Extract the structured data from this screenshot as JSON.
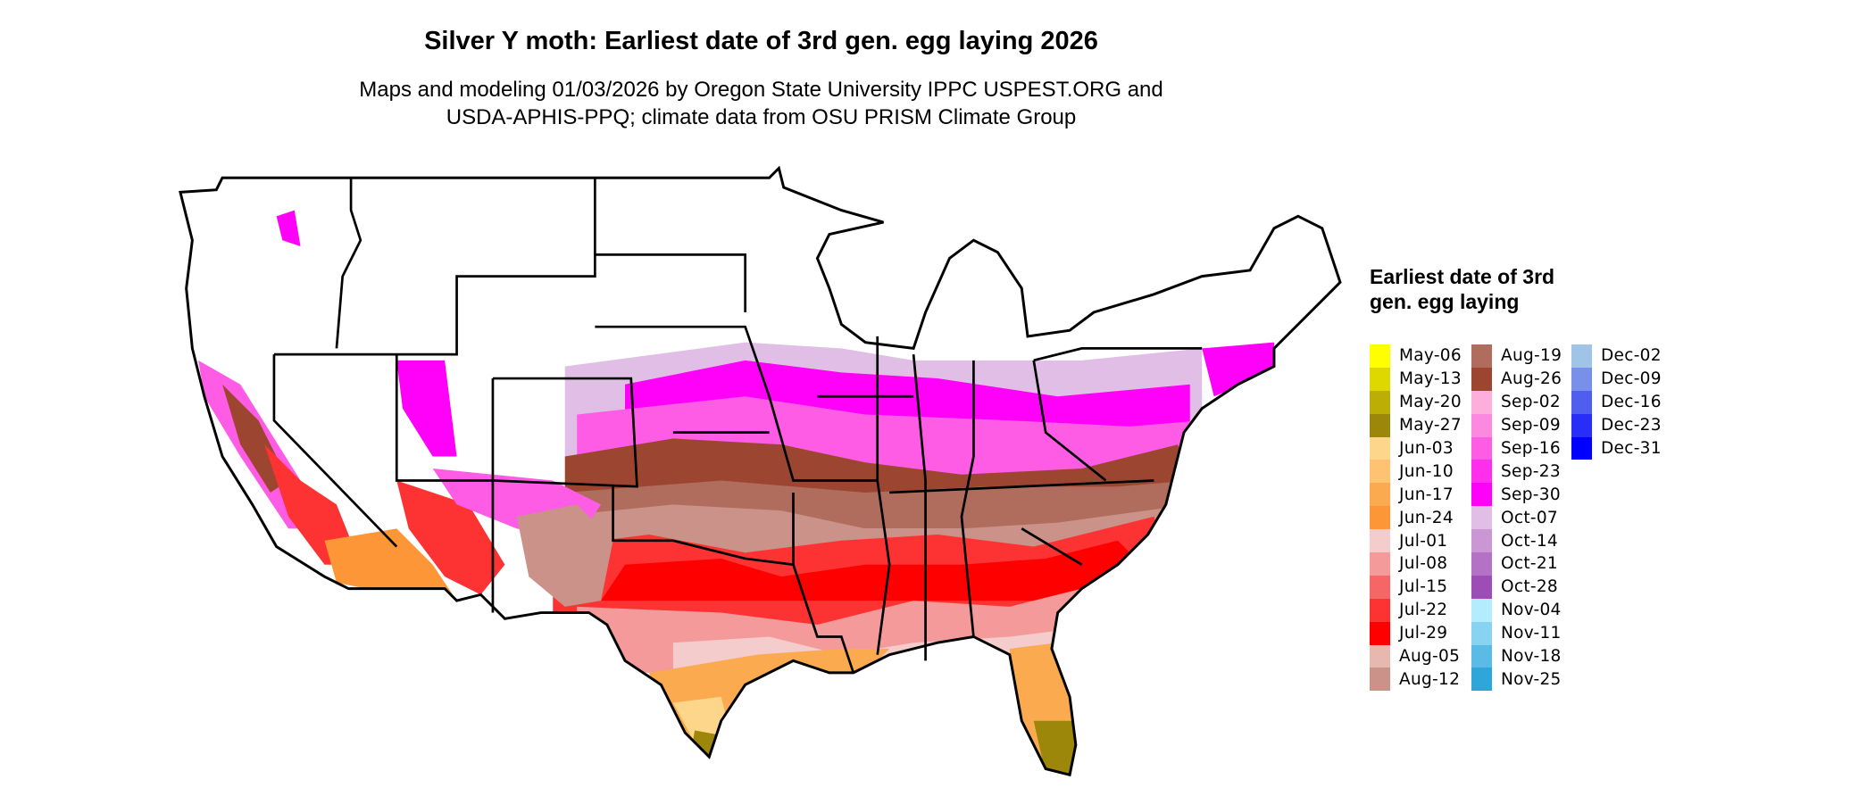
{
  "title": "Silver Y moth: Earliest date of 3rd gen. egg laying 2026",
  "subtitle_line1": "Maps and modeling 01/03/2026 by Oregon State University IPPC USPEST.ORG and",
  "subtitle_line2": "USDA-APHIS-PPQ; climate data from OSU PRISM Climate Group",
  "legend": {
    "title": "Earliest date of 3rd gen. egg laying",
    "items": [
      {
        "label": "May-06",
        "color": "#FFFF00"
      },
      {
        "label": "May-13",
        "color": "#DED800"
      },
      {
        "label": "May-20",
        "color": "#BCAE05"
      },
      {
        "label": "May-27",
        "color": "#9C870A"
      },
      {
        "label": "Jun-03",
        "color": "#FDD68C"
      },
      {
        "label": "Jun-10",
        "color": "#FDC272"
      },
      {
        "label": "Jun-17",
        "color": "#FBAA50"
      },
      {
        "label": "Jun-24",
        "color": "#FD9636"
      },
      {
        "label": "Jul-01",
        "color": "#F4CCCC"
      },
      {
        "label": "Jul-08",
        "color": "#F49A9A"
      },
      {
        "label": "Jul-15",
        "color": "#F76666"
      },
      {
        "label": "Jul-22",
        "color": "#FD3333"
      },
      {
        "label": "Jul-29",
        "color": "#FF0000"
      },
      {
        "label": "Aug-05",
        "color": "#E6B8B0"
      },
      {
        "label": "Aug-12",
        "color": "#CA9288"
      },
      {
        "label": "Aug-19",
        "color": "#B06C5C"
      },
      {
        "label": "Aug-26",
        "color": "#9C4632"
      },
      {
        "label": "Sep-02",
        "color": "#FDAEDB"
      },
      {
        "label": "Sep-09",
        "color": "#FD88E0"
      },
      {
        "label": "Sep-16",
        "color": "#FF5CE6"
      },
      {
        "label": "Sep-23",
        "color": "#FF2EEC"
      },
      {
        "label": "Sep-30",
        "color": "#FF00F8"
      },
      {
        "label": "Oct-07",
        "color": "#E0BEE6"
      },
      {
        "label": "Oct-14",
        "color": "#CA96D4"
      },
      {
        "label": "Oct-21",
        "color": "#B472C6"
      },
      {
        "label": "Oct-28",
        "color": "#9E4CB6"
      },
      {
        "label": "Nov-04",
        "color": "#B2ECFD"
      },
      {
        "label": "Nov-11",
        "color": "#86D4F2"
      },
      {
        "label": "Nov-18",
        "color": "#5ABCE6"
      },
      {
        "label": "Nov-25",
        "color": "#2EA6DA"
      },
      {
        "label": "Dec-02",
        "color": "#A0C4E8"
      },
      {
        "label": "Dec-09",
        "color": "#7890EA"
      },
      {
        "label": "Dec-16",
        "color": "#505EF0"
      },
      {
        "label": "Dec-23",
        "color": "#282EF8"
      },
      {
        "label": "Dec-31",
        "color": "#0000FF"
      }
    ]
  }
}
